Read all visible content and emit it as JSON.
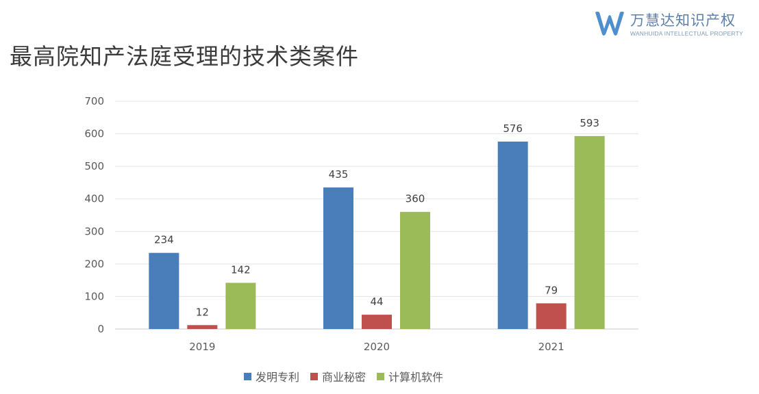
{
  "title": "最高院知产法庭受理的技术类案件",
  "brand": {
    "name": "万慧达知识产权",
    "subtitle": "WANHUIDA INTELLECTUAL PROPERTY",
    "color": "#4f8fce",
    "icon": "w-logo-icon"
  },
  "chart_data": {
    "type": "bar",
    "title": "最高院知产法庭受理的技术类案件",
    "xlabel": "",
    "ylabel": "",
    "categories": [
      "2019",
      "2020",
      "2021"
    ],
    "series": [
      {
        "name": "发明专利",
        "values": [
          234,
          435,
          576
        ],
        "color": "#4a7ebb"
      },
      {
        "name": "商业秘密",
        "values": [
          12,
          44,
          79
        ],
        "color": "#c0504d"
      },
      {
        "name": "计算机软件",
        "values": [
          142,
          360,
          593
        ],
        "color": "#9bbb59"
      }
    ],
    "ylim": [
      0,
      700
    ],
    "yticks": [
      0,
      100,
      200,
      300,
      400,
      500,
      600,
      700
    ],
    "grid": true,
    "legend_position": "bottom",
    "data_labels": true
  }
}
